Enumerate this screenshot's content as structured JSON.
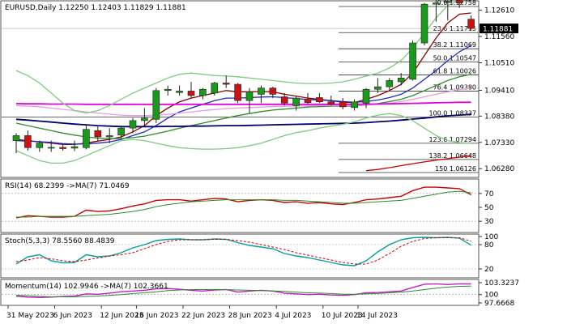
{
  "main": {
    "header": "EURUSD,Daily  1.12250 1.12403 1.11829 1.11881",
    "price_axis": [
      "1.12610",
      "1.11560",
      "1.10510",
      "1.09410",
      "1.08380",
      "1.07330",
      "1.06280"
    ],
    "current_price": "1.11881",
    "fib_levels": [
      {
        "label": "0.0 1.12758",
        "price": 1.12758
      },
      {
        "label": "23.6 1.11715",
        "price": 1.11715
      },
      {
        "label": "38.2 1.11069",
        "price": 1.11069
      },
      {
        "label": "50.0 1.10547",
        "price": 1.10547
      },
      {
        "label": "61.8 1.10026",
        "price": 1.10026
      },
      {
        "label": "76.4 1.09380",
        "price": 1.0938
      },
      {
        "label": "100.0 1.08337",
        "price": 1.08337
      },
      {
        "label": "123.6 1.07294",
        "price": 1.07294
      },
      {
        "label": "138.2 1.06648",
        "price": 1.06648
      },
      {
        "label": "150 1.06126",
        "price": 1.06126
      }
    ]
  },
  "rsi": {
    "header": "RSI(14) 68.2399  ->MA(7) 71.0469",
    "axis": [
      "70",
      "50",
      "30"
    ]
  },
  "stoch": {
    "header": "Stoch(5,3,3) 78.5560 88.4839",
    "axis": [
      "100",
      "80",
      "20"
    ]
  },
  "momentum": {
    "header": "Momentum(14) 102.9946  ->MA(7) 102.3661",
    "axis": [
      "103.3237",
      "100",
      "97.6668"
    ]
  },
  "x_axis": [
    "31 May 2023",
    "6 Jun 2023",
    "12 Jun 2023",
    "16 Jun 2023",
    "22 Jun 2023",
    "28 Jun 2023",
    "4 Jul 2023",
    "10 Jul 2023",
    "14 Jul 2023"
  ],
  "chart_data": {
    "type": "candlestick",
    "symbol": "EURUSD",
    "timeframe": "Daily",
    "ohlc_header": [
      1.1225,
      1.12403,
      1.11829,
      1.11881
    ],
    "candles": [
      {
        "o": 1.074,
        "h": 1.077,
        "l": 1.069,
        "c": 1.076
      },
      {
        "o": 1.076,
        "h": 1.078,
        "l": 1.07,
        "c": 1.0712
      },
      {
        "o": 1.0712,
        "h": 1.074,
        "l": 1.0695,
        "c": 1.073
      },
      {
        "o": 1.071,
        "h": 1.074,
        "l": 1.0695,
        "c": 1.0713
      },
      {
        "o": 1.0713,
        "h": 1.0722,
        "l": 1.07,
        "c": 1.0708
      },
      {
        "o": 1.071,
        "h": 1.074,
        "l": 1.0698,
        "c": 1.0716
      },
      {
        "o": 1.0712,
        "h": 1.08,
        "l": 1.0705,
        "c": 1.0785
      },
      {
        "o": 1.078,
        "h": 1.08,
        "l": 1.074,
        "c": 1.0755
      },
      {
        "o": 1.0755,
        "h": 1.079,
        "l": 1.073,
        "c": 1.076
      },
      {
        "o": 1.0762,
        "h": 1.08,
        "l": 1.075,
        "c": 1.079
      },
      {
        "o": 1.079,
        "h": 1.083,
        "l": 1.077,
        "c": 1.082
      },
      {
        "o": 1.082,
        "h": 1.087,
        "l": 1.08,
        "c": 1.083
      },
      {
        "o": 1.0825,
        "h": 1.095,
        "l": 1.081,
        "c": 1.094
      },
      {
        "o": 1.094,
        "h": 1.096,
        "l": 1.092,
        "c": 1.0945
      },
      {
        "o": 1.0932,
        "h": 1.096,
        "l": 1.092,
        "c": 1.0938
      },
      {
        "o": 1.0938,
        "h": 1.0975,
        "l": 1.091,
        "c": 1.092
      },
      {
        "o": 1.092,
        "h": 1.095,
        "l": 1.0905,
        "c": 1.0945
      },
      {
        "o": 1.093,
        "h": 1.0975,
        "l": 1.092,
        "c": 1.097
      },
      {
        "o": 1.097,
        "h": 1.1,
        "l": 1.095,
        "c": 1.0965
      },
      {
        "o": 1.0965,
        "h": 1.097,
        "l": 1.089,
        "c": 1.09
      },
      {
        "o": 1.09,
        "h": 1.095,
        "l": 1.085,
        "c": 1.0935
      },
      {
        "o": 1.0925,
        "h": 1.096,
        "l": 1.089,
        "c": 1.095
      },
      {
        "o": 1.095,
        "h": 1.0955,
        "l": 1.091,
        "c": 1.0925
      },
      {
        "o": 1.0915,
        "h": 1.093,
        "l": 1.088,
        "c": 1.089
      },
      {
        "o": 1.088,
        "h": 1.092,
        "l": 1.086,
        "c": 1.091
      },
      {
        "o": 1.0905,
        "h": 1.093,
        "l": 1.0885,
        "c": 1.0892
      },
      {
        "o": 1.0912,
        "h": 1.093,
        "l": 1.089,
        "c": 1.0895
      },
      {
        "o": 1.0895,
        "h": 1.092,
        "l": 1.088,
        "c": 1.0885
      },
      {
        "o": 1.0895,
        "h": 1.091,
        "l": 1.0865,
        "c": 1.0875
      },
      {
        "o": 1.0872,
        "h": 1.0905,
        "l": 1.086,
        "c": 1.0895
      },
      {
        "o": 1.089,
        "h": 1.095,
        "l": 1.087,
        "c": 1.0945
      },
      {
        "o": 1.0945,
        "h": 1.099,
        "l": 1.093,
        "c": 1.0955
      },
      {
        "o": 1.0955,
        "h": 1.099,
        "l": 1.094,
        "c": 1.098
      },
      {
        "o": 1.0975,
        "h": 1.101,
        "l": 1.096,
        "c": 1.099
      },
      {
        "o": 1.0985,
        "h": 1.114,
        "l": 1.098,
        "c": 1.113
      },
      {
        "o": 1.113,
        "h": 1.129,
        "l": 1.112,
        "c": 1.1285
      },
      {
        "o": 1.1285,
        "h": 1.1305,
        "l": 1.1215,
        "c": 1.129
      },
      {
        "o": 1.1295,
        "h": 1.132,
        "l": 1.122,
        "c": 1.1295
      },
      {
        "o": 1.13,
        "h": 1.131,
        "l": 1.127,
        "c": 1.129
      },
      {
        "o": 1.1225,
        "h": 1.12403,
        "l": 1.11829,
        "c": 1.11881
      }
    ],
    "ma_lines": [
      {
        "name": "",
        "color": "#8b0000",
        "values": [
          1.0745,
          1.074,
          1.0735,
          1.073,
          1.0725,
          1.0725,
          1.073,
          1.0738,
          1.0745,
          1.0755,
          1.0775,
          1.08,
          1.084,
          1.087,
          1.0895,
          1.091,
          1.092,
          1.093,
          1.094,
          1.0935,
          1.0935,
          1.0936,
          1.0935,
          1.0925,
          1.0918,
          1.091,
          1.0905,
          1.09,
          1.0893,
          1.0892,
          1.0905,
          1.092,
          1.094,
          1.0965,
          1.101,
          1.108,
          1.115,
          1.121,
          1.1245,
          1.125
        ]
      },
      {
        "name": "",
        "color": "#1f2ac8",
        "values": [
          1.074,
          1.0738,
          1.0736,
          1.0733,
          1.0728,
          1.0726,
          1.0727,
          1.073,
          1.0735,
          1.0745,
          1.076,
          1.0775,
          1.08,
          1.083,
          1.0855,
          1.087,
          1.0885,
          1.09,
          1.091,
          1.091,
          1.0912,
          1.0914,
          1.0915,
          1.0912,
          1.0908,
          1.0904,
          1.0902,
          1.09,
          1.0896,
          1.0893,
          1.0896,
          1.0902,
          1.0912,
          1.0925,
          1.095,
          1.0985,
          1.102,
          1.106,
          1.1095,
          1.112
        ]
      },
      {
        "name": "",
        "color": "#2e8b2e",
        "values": [
          1.081,
          1.08,
          1.079,
          1.078,
          1.077,
          1.0762,
          1.0755,
          1.075,
          1.0748,
          1.0748,
          1.0752,
          1.0758,
          1.0768,
          1.0778,
          1.079,
          1.08,
          1.081,
          1.082,
          1.083,
          1.084,
          1.0848,
          1.0856,
          1.0862,
          1.0866,
          1.087,
          1.0874,
          1.0876,
          1.0878,
          1.0878,
          1.0878,
          1.0882,
          1.0888,
          1.0896,
          1.0905,
          1.092,
          1.094,
          1.096,
          1.098,
          1.0995,
          1.1005
        ]
      },
      {
        "name": "",
        "color": "#e89adf",
        "values": [
          1.088,
          1.0878,
          1.0875,
          1.087,
          1.0865,
          1.086,
          1.0855,
          1.085,
          1.0846,
          1.0842,
          1.084,
          1.084,
          1.0842,
          1.0845,
          1.085,
          1.0855,
          1.086,
          1.0864,
          1.0868,
          1.087,
          1.0872,
          1.0874,
          1.0876,
          1.0877,
          1.0878,
          1.0879,
          1.088,
          1.088,
          1.088,
          1.088,
          1.0882,
          1.0886,
          1.089,
          1.0896,
          1.0905,
          1.0915,
          1.0925,
          1.0935,
          1.0944,
          1.095
        ]
      },
      {
        "name": "",
        "color": "#e000e0",
        "values": [
          1.0888,
          1.0887,
          1.0887,
          1.0886,
          1.0886,
          1.0886,
          1.0885,
          1.0885,
          1.0885,
          1.0885,
          1.0885,
          1.0885,
          1.0885,
          1.0885,
          1.0885,
          1.0885,
          1.0885,
          1.0885,
          1.0885,
          1.0885,
          1.0885,
          1.0885,
          1.0885,
          1.0885,
          1.0885,
          1.0885,
          1.0885,
          1.0885,
          1.0885,
          1.0885,
          1.0886,
          1.0886,
          1.0887,
          1.0888,
          1.0889,
          1.089,
          1.0891,
          1.0892,
          1.0893,
          1.0893
        ]
      },
      {
        "name": "",
        "color": "#00006e",
        "values": [
          1.0825,
          1.0822,
          1.0818,
          1.0814,
          1.081,
          1.0806,
          1.0803,
          1.08,
          1.0798,
          1.0796,
          1.0796,
          1.0796,
          1.0796,
          1.0797,
          1.0797,
          1.0798,
          1.0798,
          1.0799,
          1.08,
          1.08,
          1.0801,
          1.0802,
          1.0803,
          1.0804,
          1.0805,
          1.0806,
          1.0807,
          1.0808,
          1.0809,
          1.081,
          1.0812,
          1.0815,
          1.0818,
          1.0822,
          1.0826,
          1.083,
          1.0835,
          1.0839,
          1.0842,
          1.0845
        ]
      },
      {
        "name": "",
        "color": "#cc0000",
        "values": [
          null,
          null,
          null,
          null,
          null,
          null,
          null,
          null,
          null,
          null,
          null,
          null,
          null,
          null,
          null,
          null,
          null,
          null,
          null,
          null,
          null,
          null,
          null,
          null,
          null,
          null,
          null,
          null,
          null,
          null,
          1.062,
          1.0625,
          1.0632,
          1.064,
          1.0648,
          1.0655,
          1.0662,
          1.0668,
          1.0674,
          1.068
        ]
      },
      {
        "name": "",
        "color": "#7ecb7e",
        "values": [
          1.102,
          1.1,
          1.097,
          1.093,
          1.089,
          1.086,
          1.085,
          1.086,
          1.088,
          1.0905,
          1.093,
          1.095,
          1.097,
          1.099,
          1.1005,
          1.101,
          1.1005,
          1.1,
          1.0998,
          1.0995,
          1.099,
          1.0985,
          1.098,
          1.0975,
          1.097,
          1.0968,
          1.0968,
          1.097,
          1.0975,
          1.0985,
          1.0998,
          1.101,
          1.103,
          1.106,
          1.111,
          1.117,
          1.123,
          1.128,
          1.13,
          1.1305
        ]
      },
      {
        "name": "",
        "color": "#7ecb7e",
        "values": [
          1.07,
          1.068,
          1.066,
          1.065,
          1.065,
          1.066,
          1.068,
          1.07,
          1.072,
          1.074,
          1.0745,
          1.074,
          1.073,
          1.072,
          1.0712,
          1.0708,
          1.0706,
          1.0706,
          1.0708,
          1.0712,
          1.072,
          1.073,
          1.0745,
          1.076,
          1.0772,
          1.078,
          1.079,
          1.0798,
          1.0805,
          1.0815,
          1.083,
          1.0842,
          1.0848,
          1.084,
          1.082,
          1.079,
          1.076,
          1.074,
          1.0732,
          1.073
        ]
      }
    ],
    "rsi": {
      "ylim": [
        15,
        85
      ],
      "series": [
        {
          "name": "RSI(14)",
          "color": "#cc0000",
          "values": [
            35,
            38,
            37,
            36,
            36,
            37,
            46,
            44,
            45,
            48,
            52,
            55,
            60,
            61,
            61,
            59,
            61,
            63,
            62,
            58,
            60,
            61,
            60,
            57,
            58,
            56,
            57,
            55,
            54,
            57,
            61,
            62,
            64,
            66,
            74,
            79,
            79,
            78,
            77,
            68.2399
          ]
        },
        {
          "name": "MA(7)",
          "color": "#2e8b2e",
          "values": [
            36,
            36,
            37,
            37,
            37,
            37,
            38,
            39,
            40,
            42,
            44,
            47,
            51,
            54,
            56,
            58,
            59,
            60,
            61,
            61,
            61,
            61,
            61,
            60,
            60,
            59,
            58,
            57,
            56,
            56,
            57,
            58,
            59,
            60,
            63,
            66,
            69,
            72,
            73,
            71.0469
          ]
        }
      ]
    },
    "stoch": {
      "ylim": [
        0,
        100
      ],
      "series": [
        {
          "name": "main",
          "color": "#00a0a0",
          "values": [
            32,
            50,
            55,
            40,
            35,
            36,
            55,
            50,
            52,
            60,
            72,
            80,
            90,
            93,
            94,
            92,
            92,
            94,
            93,
            85,
            78,
            74,
            70,
            58,
            52,
            48,
            42,
            36,
            30,
            28,
            40,
            62,
            80,
            92,
            97,
            98,
            97,
            98,
            96,
            78.556
          ]
        },
        {
          "name": "signal",
          "color": "#cc0000",
          "values": [
            38,
            42,
            48,
            45,
            40,
            38,
            42,
            47,
            52,
            55,
            60,
            70,
            80,
            88,
            92,
            92,
            92,
            93,
            93,
            90,
            86,
            80,
            74,
            68,
            60,
            54,
            48,
            42,
            36,
            32,
            32,
            42,
            58,
            76,
            88,
            95,
            97,
            97,
            97,
            88.4839
          ]
        }
      ]
    },
    "momentum": {
      "ylim": [
        97.0,
        104.0
      ],
      "series": [
        {
          "name": "Momentum(14)",
          "color": "#c020c0",
          "values": [
            99.6,
            99.3,
            99.2,
            99.3,
            99.5,
            99.6,
            100.2,
            100.1,
            100.4,
            100.8,
            101.0,
            101.2,
            101.6,
            101.7,
            101.5,
            101.2,
            101.0,
            101.3,
            101.4,
            100.7,
            101.0,
            101.2,
            101.0,
            100.4,
            100.2,
            100.0,
            100.1,
            99.9,
            99.8,
            100.0,
            100.5,
            100.6,
            100.8,
            101.0,
            102.0,
            102.9,
            103.0,
            102.8,
            103.0,
            102.9946
          ]
        },
        {
          "name": "MA(7)",
          "color": "#2e8b2e",
          "values": [
            99.8,
            99.7,
            99.5,
            99.4,
            99.4,
            99.4,
            99.5,
            99.6,
            99.8,
            100.0,
            100.3,
            100.5,
            100.8,
            101.1,
            101.3,
            101.4,
            101.4,
            101.4,
            101.4,
            101.3,
            101.2,
            101.1,
            101.0,
            100.9,
            100.7,
            100.5,
            100.4,
            100.3,
            100.1,
            100.1,
            100.2,
            100.3,
            100.5,
            100.7,
            101.0,
            101.4,
            101.8,
            102.1,
            102.3,
            102.3661
          ]
        }
      ]
    }
  }
}
